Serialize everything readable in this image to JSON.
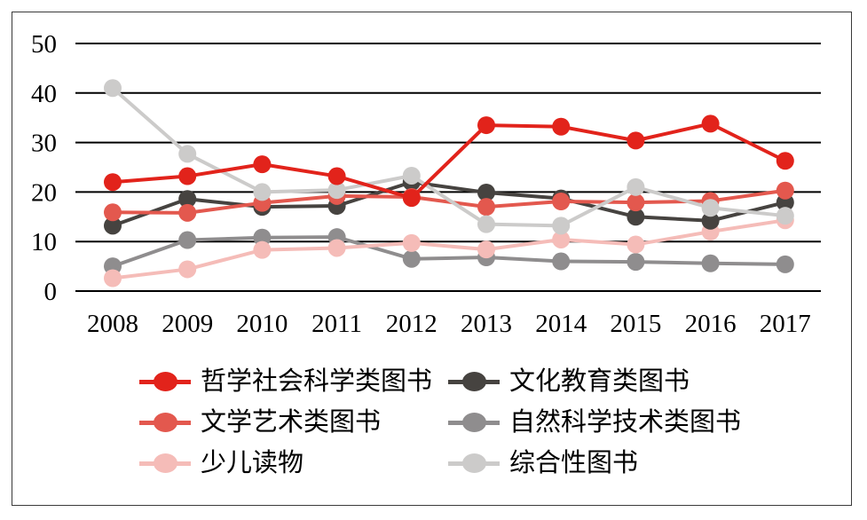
{
  "frame": {
    "border_color": "#3a3a3a",
    "background": "#ffffff"
  },
  "chart_data": {
    "type": "line",
    "title": "",
    "xlabel": "",
    "ylabel": "",
    "x": [
      "2008",
      "2009",
      "2010",
      "2011",
      "2012",
      "2013",
      "2014",
      "2015",
      "2016",
      "2017"
    ],
    "series": [
      {
        "name": "哲学社会科学类图书",
        "color": "#e2231b",
        "values": [
          22.0,
          23.2,
          25.6,
          23.2,
          18.8,
          33.5,
          33.2,
          30.4,
          33.8,
          26.3
        ]
      },
      {
        "name": "文化教育类图书",
        "color": "#464340",
        "values": [
          13.2,
          18.6,
          17.0,
          17.2,
          22.0,
          19.9,
          18.7,
          15.0,
          14.2,
          17.9
        ]
      },
      {
        "name": "文学艺术类图书",
        "color": "#e3584e",
        "values": [
          15.9,
          15.8,
          17.8,
          19.2,
          19.0,
          17.0,
          18.1,
          17.9,
          18.2,
          20.3
        ]
      },
      {
        "name": "自然科学技术类图书",
        "color": "#8f8d8e",
        "values": [
          5.0,
          10.3,
          10.8,
          10.9,
          6.5,
          6.8,
          6.0,
          5.9,
          5.6,
          5.4
        ]
      },
      {
        "name": "少儿读物",
        "color": "#f5bcb8",
        "values": [
          2.6,
          4.4,
          8.3,
          8.7,
          9.7,
          8.4,
          10.4,
          9.4,
          12.0,
          14.3
        ]
      },
      {
        "name": "综合性图书",
        "color": "#cccbca",
        "values": [
          41.0,
          27.7,
          20.0,
          20.4,
          23.3,
          13.5,
          13.2,
          21.0,
          16.8,
          15.2
        ]
      }
    ],
    "yticks": [
      0,
      10,
      20,
      30,
      40,
      50
    ],
    "ylim": [
      0,
      50
    ],
    "grid": true,
    "gridline_color": "#000000",
    "legend_position": "bottom"
  }
}
